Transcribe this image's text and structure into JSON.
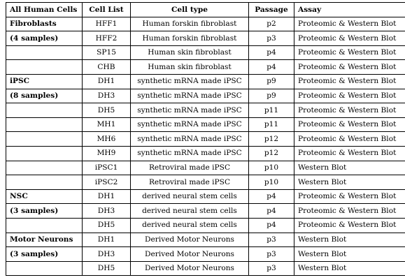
{
  "table": {
    "headers": [
      "All Human Cells",
      "Cell List",
      "Cell type",
      "Passage",
      "Assay"
    ],
    "rows": [
      {
        "group": "Fibroblasts",
        "cell_list": "HFF1",
        "cell_type": "Human forskin fibroblast",
        "passage": "p2",
        "assay": "Proteomic & Western Blot"
      },
      {
        "group": "(4 samples)",
        "cell_list": "HFF2",
        "cell_type": "Human forskin fibroblast",
        "passage": "p3",
        "assay": "Proteomic & Western Blot"
      },
      {
        "group": "",
        "cell_list": "SP15",
        "cell_type": "Human skin fibroblast",
        "passage": "p4",
        "assay": "Proteomic & Western Blot"
      },
      {
        "group": "",
        "cell_list": "CHB",
        "cell_type": "Human skin fibroblast",
        "passage": "p4",
        "assay": "Proteomic & Western Blot"
      },
      {
        "group": "iPSC",
        "cell_list": "DH1",
        "cell_type": "synthetic mRNA made iPSC",
        "passage": "p9",
        "assay": "Proteomic & Western Blot"
      },
      {
        "group": "(8 samples)",
        "cell_list": "DH3",
        "cell_type": "synthetic mRNA made iPSC",
        "passage": "p9",
        "assay": "Proteomic & Western Blot"
      },
      {
        "group": "",
        "cell_list": "DH5",
        "cell_type": "synthetic mRNA made iPSC",
        "passage": "p11",
        "assay": "Proteomic & Western Blot"
      },
      {
        "group": "",
        "cell_list": "MH1",
        "cell_type": "synthetic mRNA made iPSC",
        "passage": "p11",
        "assay": "Proteomic & Western Blot"
      },
      {
        "group": "",
        "cell_list": "MH6",
        "cell_type": "synthetic mRNA made iPSC",
        "passage": "p12",
        "assay": "Proteomic & Western Blot"
      },
      {
        "group": "",
        "cell_list": "MH9",
        "cell_type": "synthetic mRNA made iPSC",
        "passage": "p12",
        "assay": "Proteomic & Western Blot"
      },
      {
        "group": "",
        "cell_list": "iPSC1",
        "cell_type": "Retroviral made iPSC",
        "passage": "p10",
        "assay": "Western Blot"
      },
      {
        "group": "",
        "cell_list": "iPSC2",
        "cell_type": "Retroviral made iPSC",
        "passage": "p10",
        "assay": "Western Blot"
      },
      {
        "group": "NSC",
        "cell_list": "DH1",
        "cell_type": "derived neural stem cells",
        "passage": "p4",
        "assay": "Proteomic & Western Blot"
      },
      {
        "group": "(3 samples)",
        "cell_list": "DH3",
        "cell_type": "derived neural stem cells",
        "passage": "p4",
        "assay": "Proteomic & Western Blot"
      },
      {
        "group": "",
        "cell_list": "DH5",
        "cell_type": "derived neural stem cells",
        "passage": "p4",
        "assay": "Proteomic & Western Blot"
      },
      {
        "group": "Motor Neurons",
        "cell_list": "DH1",
        "cell_type": "Derived Motor Neurons",
        "passage": "p3",
        "assay": "Western Blot"
      },
      {
        "group": "(3 samples)",
        "cell_list": "DH3",
        "cell_type": "Derived Motor Neurons",
        "passage": "p3",
        "assay": "Western Blot"
      },
      {
        "group": "",
        "cell_list": "DH5",
        "cell_type": "Derived Motor Neurons",
        "passage": "p3",
        "assay": "Western Blot"
      }
    ]
  }
}
